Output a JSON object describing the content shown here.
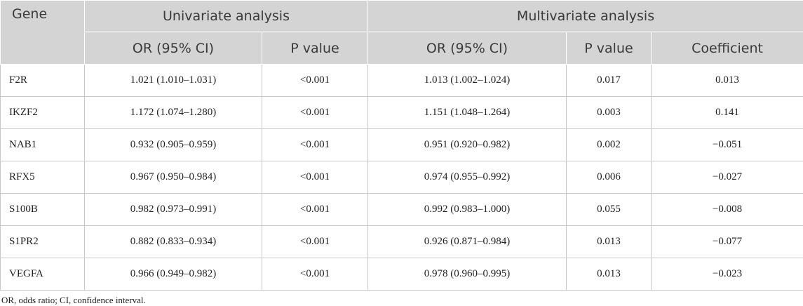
{
  "table": {
    "header_gene": "Gene",
    "header_univariate": "Univariate analysis",
    "header_multivariate": "Multivariate analysis",
    "subheaders": [
      "OR (95% CI)",
      "P value",
      "OR (95% CI)",
      "P value",
      "Coefficient"
    ],
    "rows": [
      {
        "gene": "F2R",
        "uni_or": "1.021 (1.010–1.031)",
        "uni_p": "<0.001",
        "multi_or": "1.013 (1.002–1.024)",
        "multi_p": "0.017",
        "coef": "0.013"
      },
      {
        "gene": "IKZF2",
        "uni_or": "1.172 (1.074–1.280)",
        "uni_p": "<0.001",
        "multi_or": "1.151 (1.048–1.264)",
        "multi_p": "0.003",
        "coef": "0.141"
      },
      {
        "gene": "NAB1",
        "uni_or": "0.932 (0.905–0.959)",
        "uni_p": "<0.001",
        "multi_or": "0.951 (0.920–0.982)",
        "multi_p": "0.002",
        "coef": "−0.051"
      },
      {
        "gene": "RFX5",
        "uni_or": "0.967 (0.950–0.984)",
        "uni_p": "<0.001",
        "multi_or": "0.974 (0.955–0.992)",
        "multi_p": "0.006",
        "coef": "−0.027"
      },
      {
        "gene": "S100B",
        "uni_or": "0.982 (0.973–0.991)",
        "uni_p": "<0.001",
        "multi_or": "0.992 (0.983–1.000)",
        "multi_p": "0.055",
        "coef": "−0.008"
      },
      {
        "gene": "S1PR2",
        "uni_or": "0.882 (0.833–0.934)",
        "uni_p": "<0.001",
        "multi_or": "0.926 (0.871–0.984)",
        "multi_p": "0.013",
        "coef": "−0.077"
      },
      {
        "gene": "VEGFA",
        "uni_or": "0.966 (0.949–0.982)",
        "uni_p": "<0.001",
        "multi_or": "0.978 (0.960–0.995)",
        "multi_p": "0.013",
        "coef": "−0.023"
      }
    ]
  },
  "footnote": "OR, odds ratio; CI, confidence interval."
}
